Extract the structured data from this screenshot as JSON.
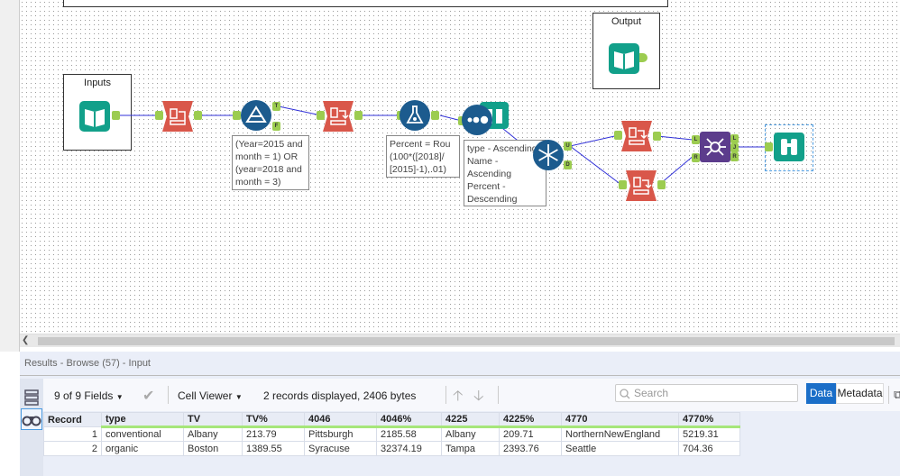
{
  "canvas": {
    "containers": [
      {
        "label": "Inputs"
      },
      {
        "label": "Output"
      }
    ],
    "annotations": {
      "filter": "(Year=2015 and\nmonth = 1) OR\n(year=2018 and\nmonth = 3)",
      "formula": "Percent = Rou\n(100*([2018]/\n[2015]-1),.01)",
      "sort": "type - Ascending\nName -\nAscending\nPercent -\nDescending"
    },
    "anchors": {
      "true": "T",
      "false": "F",
      "unique": "U",
      "dupes": "D",
      "left": "L",
      "join": "J",
      "right": "R"
    },
    "colors": {
      "input_output": "#12a08a",
      "select": "#d9574a",
      "preparation": "#1c5b8e",
      "join": "#5c3c8c",
      "anchor": "#9ccc50",
      "wire": "#4040e0"
    }
  },
  "results": {
    "title": "Results - Browse (57) - Input",
    "fields_label": "9 of 9 Fields",
    "viewer_label": "Cell Viewer",
    "status": "2 records displayed, 2406 bytes",
    "search_placeholder": "Search",
    "data_tab": "Data",
    "metadata_tab": "Metadata",
    "columns": [
      "Record",
      "type",
      "TV",
      "TV%",
      "4046",
      "4046%",
      "4225",
      "4225%",
      "4770",
      "4770%"
    ],
    "rows": [
      [
        "1",
        "conventional",
        "Albany",
        "213.79",
        "Pittsburgh",
        "2185.58",
        "Albany",
        "209.71",
        "NorthernNewEngland",
        "5219.31"
      ],
      [
        "2",
        "organic",
        "Boston",
        "1389.55",
        "Syracuse",
        "32374.19",
        "Tampa",
        "2393.76",
        "Seattle",
        "704.36"
      ]
    ]
  }
}
